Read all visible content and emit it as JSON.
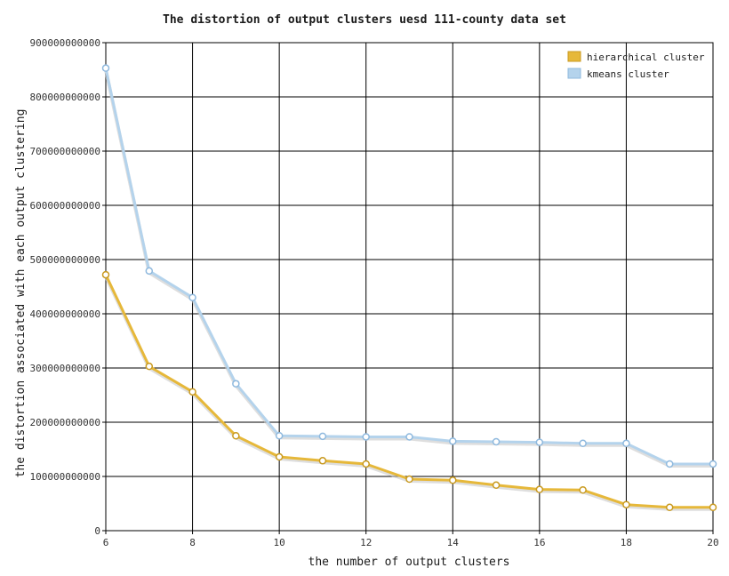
{
  "chart_data": {
    "type": "line",
    "title": "The distortion of output clusters uesd 111-county data set",
    "xlabel": "the number of output clusters",
    "ylabel": "the distortion associated with each output clustering",
    "xlim": [
      6,
      20
    ],
    "ylim": [
      0,
      900000000000
    ],
    "x_ticks": [
      "6",
      "8",
      "10",
      "12",
      "14",
      "16",
      "18",
      "20"
    ],
    "y_ticks": [
      "0",
      "100000000000",
      "200000000000",
      "300000000000",
      "400000000000",
      "500000000000",
      "600000000000",
      "700000000000",
      "800000000000",
      "900000000000"
    ],
    "x": [
      6,
      7,
      8,
      9,
      10,
      11,
      12,
      13,
      14,
      15,
      16,
      17,
      18,
      19,
      20
    ],
    "grid": true,
    "legend_position": "top-right",
    "series": [
      {
        "name": "hierarchical cluster",
        "color": "#e6b83a",
        "values": [
          472000000000,
          303000000000,
          256000000000,
          175000000000,
          136000000000,
          129000000000,
          123000000000,
          95000000000,
          93000000000,
          84000000000,
          76000000000,
          75000000000,
          48000000000,
          43000000000,
          43000000000
        ]
      },
      {
        "name": "kmeans cluster",
        "color": "#b4d3ec",
        "values": [
          853000000000,
          479000000000,
          430000000000,
          271000000000,
          175000000000,
          174000000000,
          173000000000,
          173000000000,
          165000000000,
          164000000000,
          163000000000,
          161000000000,
          161000000000,
          123000000000,
          123000000000
        ]
      }
    ]
  }
}
